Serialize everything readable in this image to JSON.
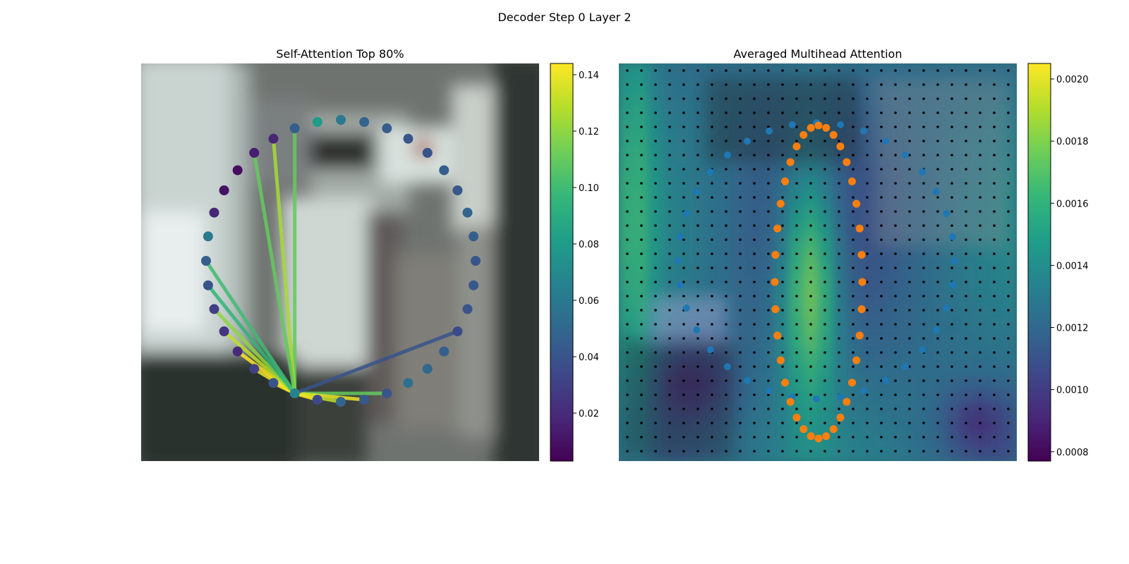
{
  "figure": {
    "suptitle": "Decoder Step 0 Layer 2"
  },
  "colors": {
    "viridis": [
      "#440154",
      "#482878",
      "#3e4989",
      "#31688e",
      "#26828e",
      "#1f9e89",
      "#35b779",
      "#6ece58",
      "#b5de2b",
      "#fde725"
    ],
    "blue_points": "#1f77b4",
    "orange_points": "#ff7f0e",
    "grid_dots": "#000000"
  },
  "chart_data": [
    {
      "type": "scatter",
      "title": "Self-Attention Top 80%",
      "background": "blurred street-scene photograph",
      "colorbar": {
        "range": [
          0.003,
          0.144
        ],
        "ticks": [
          "0.02",
          "0.04",
          "0.06",
          "0.08",
          "0.10",
          "0.12",
          "0.14"
        ],
        "tick_values": [
          0.02,
          0.04,
          0.06,
          0.08,
          0.1,
          0.12,
          0.14
        ]
      },
      "num_points": 36,
      "query_index": 20,
      "point_values": [
        0.06,
        0.048,
        0.045,
        0.042,
        0.04,
        0.045,
        0.042,
        0.048,
        0.045,
        0.04,
        0.042,
        0.04,
        0.035,
        0.045,
        0.05,
        0.055,
        0.04,
        0.042,
        0.048,
        0.035,
        0.065,
        0.04,
        0.03,
        0.02,
        0.025,
        0.03,
        0.04,
        0.045,
        0.06,
        0.018,
        0.01,
        0.008,
        0.015,
        0.018,
        0.045,
        0.08
      ],
      "edges": [
        {
          "to": 16,
          "weight": 0.11
        },
        {
          "to": 17,
          "weight": 0.14
        },
        {
          "to": 18,
          "weight": 0.13
        },
        {
          "to": 19,
          "weight": 0.142
        },
        {
          "to": 21,
          "weight": 0.144
        },
        {
          "to": 22,
          "weight": 0.14
        },
        {
          "to": 23,
          "weight": 0.144
        },
        {
          "to": 24,
          "weight": 0.13
        },
        {
          "to": 25,
          "weight": 0.12
        },
        {
          "to": 26,
          "weight": 0.095
        },
        {
          "to": 27,
          "weight": 0.1
        },
        {
          "to": 12,
          "weight": 0.04
        },
        {
          "to": 34,
          "weight": 0.11
        },
        {
          "to": 33,
          "weight": 0.125
        },
        {
          "to": 32,
          "weight": 0.11
        }
      ]
    },
    {
      "type": "heatmap",
      "title": "Averaged Multihead Attention",
      "background": "attention heatmap over blurred street-scene photograph",
      "colorbar": {
        "range": [
          0.00077,
          0.00205
        ],
        "ticks": [
          "0.0008",
          "0.0010",
          "0.0012",
          "0.0014",
          "0.0016",
          "0.0018",
          "0.0020"
        ],
        "tick_values": [
          0.0008,
          0.001,
          0.0012,
          0.0014,
          0.0016,
          0.0018,
          0.002
        ]
      },
      "grid_size": [
        28,
        28
      ],
      "series": [
        {
          "kind": "reference grid",
          "marker": "black dots"
        },
        {
          "kind": "blue sampling points",
          "count": 36
        },
        {
          "kind": "orange sampling points",
          "count": 36
        }
      ]
    }
  ]
}
